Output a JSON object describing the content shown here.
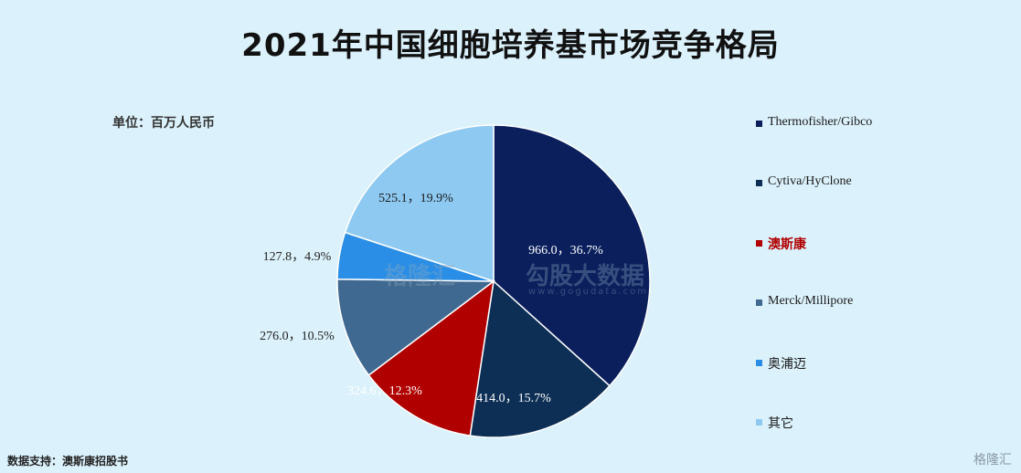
{
  "chart_data": {
    "type": "pie",
    "title": "2021年中国细胞培养基市场竞争格局",
    "unit_label": "单位：百万人民币",
    "source": "数据支持：澳斯康招股书",
    "slices": [
      {
        "name": "Thermofisher/Gibco",
        "value": 966.0,
        "percent": "36.7%",
        "label": "966.0，36.7%",
        "color": "#0a1f5c"
      },
      {
        "name": "Cytiva/HyClone",
        "value": 414.0,
        "percent": "15.7%",
        "label": "414.0，15.7%",
        "color": "#0e2f55"
      },
      {
        "name": "澳斯康",
        "value": 324.6,
        "percent": "12.3%",
        "label": "324.6，12.3%",
        "color": "#b00000"
      },
      {
        "name": "Merck/Millipore",
        "value": 276.0,
        "percent": "10.5%",
        "label": "276.0，10.5%",
        "color": "#3f6991"
      },
      {
        "name": "奥浦迈",
        "value": 127.8,
        "percent": "4.9%",
        "label": "127.8，4.9%",
        "color": "#2a8ee6"
      },
      {
        "name": "其它",
        "value": 525.1,
        "percent": "19.9%",
        "label": "525.1，19.9%",
        "color": "#8ec9f2"
      }
    ],
    "legend_position": "right"
  },
  "watermark": {
    "brand": "格隆汇",
    "partner": "勾股大数据",
    "url": "www.gogudata.com"
  }
}
